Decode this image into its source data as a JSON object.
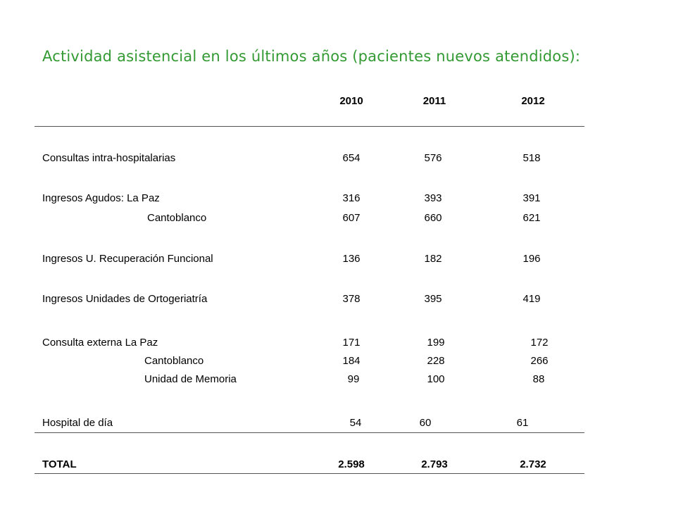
{
  "title": "Actividad asistencial en los últimos años (pacientes nuevos atendidos):",
  "colors": {
    "title": "#339933",
    "rule": "#555555",
    "text": "#000000"
  },
  "table": {
    "headers": [
      "2010",
      "2011",
      "2012"
    ],
    "rows": [
      {
        "label": "Consultas intra-hospitalarias",
        "values": [
          "654",
          "576",
          "518"
        ]
      },
      {
        "label": "Ingresos Agudos: La Paz",
        "values": [
          "316",
          "393",
          "391"
        ]
      },
      {
        "label": "Cantoblanco",
        "values": [
          "607",
          "660",
          "621"
        ]
      },
      {
        "label": "Ingresos U. Recuperación Funcional",
        "values": [
          "136",
          "182",
          "196"
        ]
      },
      {
        "label": "Ingresos Unidades de Ortogeriatría",
        "values": [
          "378",
          "395",
          "419"
        ]
      },
      {
        "label": "Consulta externa La Paz",
        "values": [
          "171",
          "199",
          "172"
        ]
      },
      {
        "label": "Cantoblanco",
        "values": [
          "184",
          "228",
          "266"
        ]
      },
      {
        "label": "Unidad de Memoria",
        "values": [
          "99",
          "100",
          "88"
        ]
      },
      {
        "label": "Hospital de día",
        "values": [
          "54",
          "60",
          "61"
        ]
      }
    ],
    "total": {
      "label": "TOTAL",
      "values": [
        "2.598",
        "2.793",
        "2.732"
      ]
    }
  }
}
